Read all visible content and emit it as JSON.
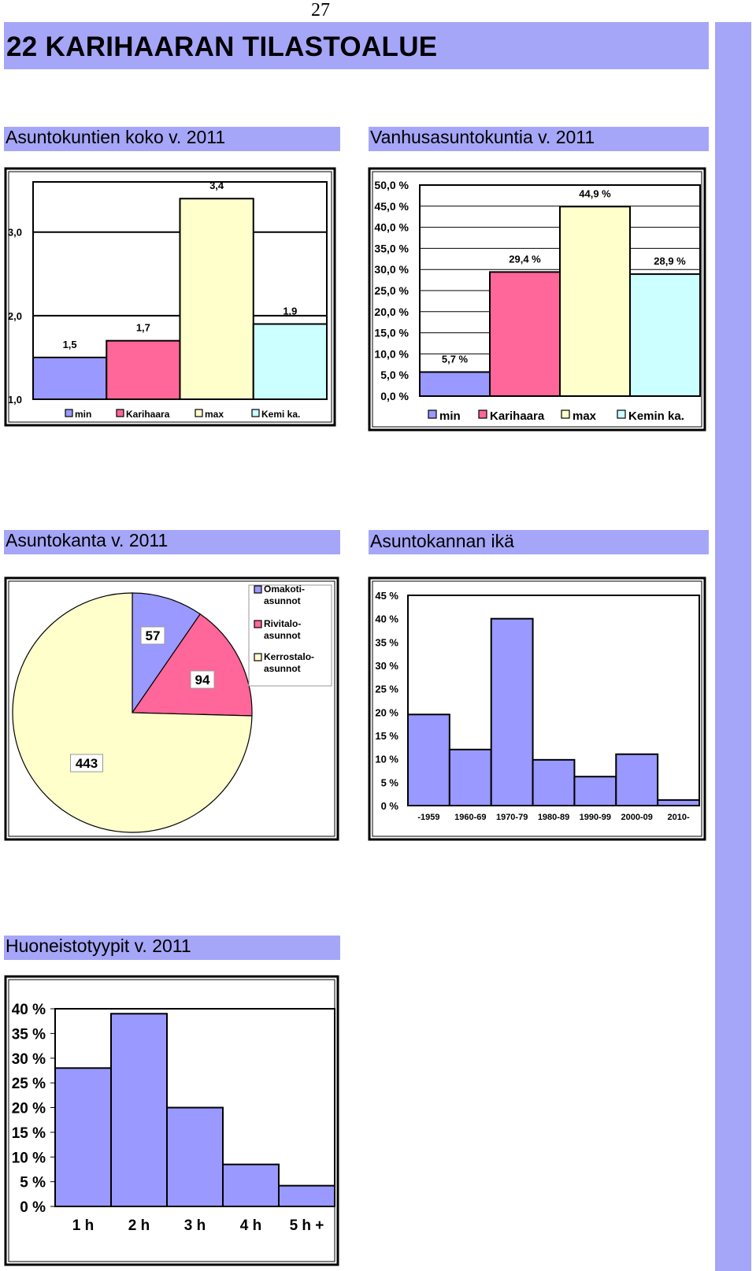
{
  "page_number": "27",
  "page_title": "22  KARIHAARAN TILASTOALUE",
  "headings": {
    "household_size": "Asuntokuntien koko v. 2011",
    "elderly_households": "Vanhusasuntokuntia  v. 2011",
    "housing_stock": "Asuntokanta v. 2011",
    "housing_age": "Asuntokannan ikä",
    "apartment_types": "Huoneistotyypit v. 2011"
  },
  "colors": {
    "accent": "#a6a6f8",
    "series_blue": "#9999ff",
    "series_pink": "#ff6699",
    "series_yellow": "#ffffcc",
    "series_cyan": "#ccffff"
  },
  "chart_data": [
    {
      "id": "household_size",
      "type": "bar",
      "categories": [
        "min",
        "Karihaara",
        "max",
        "Kemi ka."
      ],
      "values": [
        1.5,
        1.7,
        3.4,
        1.9
      ],
      "value_labels": [
        "1,5",
        "1,7",
        "3,4",
        "1,9"
      ],
      "colors": [
        "#9999ff",
        "#ff6699",
        "#ffffcc",
        "#ccffff"
      ],
      "ylim": [
        1.0,
        3.6
      ],
      "yticks": [
        1.0,
        2.0,
        3.0
      ],
      "ytick_labels": [
        "1,0",
        "2,0",
        "3,0"
      ],
      "legend": [
        "min",
        "Karihaara",
        "max",
        "Kemi ka."
      ],
      "legend_position": "bottom",
      "grid": true
    },
    {
      "id": "elderly_households",
      "type": "bar",
      "categories": [
        "min",
        "Karihaara",
        "max",
        "Kemin ka."
      ],
      "values": [
        5.7,
        29.4,
        44.9,
        28.9
      ],
      "value_labels": [
        "5,7 %",
        "29,4 %",
        "44,9 %",
        "28,9 %"
      ],
      "colors": [
        "#9999ff",
        "#ff6699",
        "#ffffcc",
        "#ccffff"
      ],
      "ylim": [
        0,
        50
      ],
      "yticks": [
        0,
        5,
        10,
        15,
        20,
        25,
        30,
        35,
        40,
        45,
        50
      ],
      "ytick_labels": [
        "0,0 %",
        "5,0 %",
        "10,0 %",
        "15,0 %",
        "20,0 %",
        "25,0 %",
        "30,0 %",
        "35,0 %",
        "40,0 %",
        "45,0 %",
        "50,0 %"
      ],
      "legend": [
        "min",
        "Karihaara",
        "max",
        "Kemin ka."
      ],
      "legend_position": "bottom",
      "grid": true
    },
    {
      "id": "housing_stock",
      "type": "pie",
      "labels": [
        "Omakoti-\nasunnot",
        "Rivitalo-\nasunnot",
        "Kerrostalo-\nasunnot"
      ],
      "legend_lines": [
        [
          "Omakoti-",
          "asunnot"
        ],
        [
          "Rivitalo-",
          "asunnot"
        ],
        [
          "Kerrostalo-",
          "asunnot"
        ]
      ],
      "values": [
        57,
        94,
        443
      ],
      "value_labels": [
        "57",
        "94",
        "443"
      ],
      "colors": [
        "#9999ff",
        "#ff6699",
        "#ffffcc"
      ],
      "legend_position": "top-right"
    },
    {
      "id": "housing_age",
      "type": "bar",
      "categories": [
        "-1959",
        "1960-69",
        "1970-79",
        "1980-89",
        "1990-99",
        "2000-09",
        "2010-"
      ],
      "values": [
        19.5,
        12.0,
        40.0,
        9.8,
        6.2,
        11.0,
        1.2
      ],
      "color": "#9999ff",
      "ylim": [
        0,
        45
      ],
      "yticks": [
        0,
        5,
        10,
        15,
        20,
        25,
        30,
        35,
        40,
        45
      ],
      "ytick_labels": [
        "0 %",
        "5 %",
        "10 %",
        "15 %",
        "20 %",
        "25 %",
        "30 %",
        "35 %",
        "40 %",
        "45 %"
      ],
      "grid": false
    },
    {
      "id": "apartment_types",
      "type": "bar",
      "categories": [
        "1 h",
        "2 h",
        "3 h",
        "4 h",
        "5 h +"
      ],
      "values": [
        28.0,
        39.0,
        20.0,
        8.5,
        4.2
      ],
      "color": "#9999ff",
      "ylim": [
        0,
        40
      ],
      "yticks": [
        0,
        5,
        10,
        15,
        20,
        25,
        30,
        35,
        40
      ],
      "ytick_labels": [
        "0 %",
        "5 %",
        "10 %",
        "15 %",
        "20 %",
        "25 %",
        "30 %",
        "35 %",
        "40 %"
      ],
      "grid": false
    }
  ]
}
